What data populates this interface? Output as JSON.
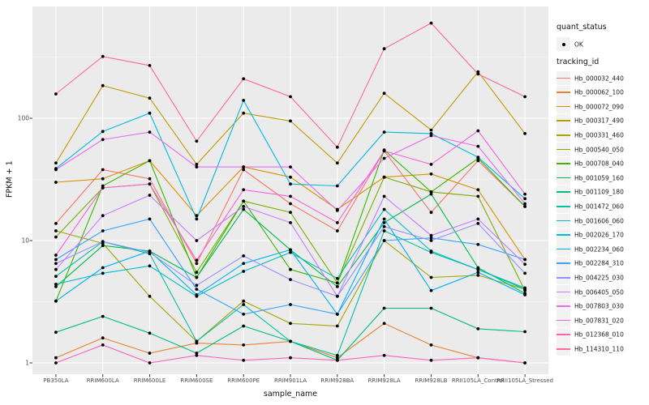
{
  "figure": {
    "y_axis": {
      "title": "FPKM + 1"
    },
    "x_axis": {
      "title": "sample_name"
    },
    "legend": {
      "quant_status_title": "quant_status",
      "quant_status_ok_label": "OK",
      "tracking_id_title": "tracking_id"
    }
  },
  "colors": {
    "panel_background": "#EBEBEB",
    "grid_major": "#FFFFFF",
    "grid_minor": "#F5F5F5",
    "tick_mark": "#333333",
    "axis_text": "#4D4D4D",
    "point": "#000000",
    "legend_key_background": "#F2F2F2"
  },
  "chart_data": {
    "type": "line",
    "title": "",
    "xlabel": "sample_name",
    "ylabel": "FPKM + 1",
    "y_scale": "log10",
    "y_ticks": [
      1,
      10,
      100
    ],
    "y_minor_ticks": [
      3.1623,
      31.623,
      316.23
    ],
    "ylim": [
      0.81,
      820
    ],
    "grid": true,
    "legend_position": "right",
    "point_shape": "filled-circle",
    "quant_status": "OK",
    "x": [
      "PB350LA",
      "RRIM600LA",
      "RRIM600LE",
      "RRIM600SE",
      "RRIM600PE",
      "RRIM901LA",
      "RRIM928BA",
      "RRIM928LA",
      "RRIM928LB",
      "RRII105LA_Control",
      "RRII105LA_Stressed"
    ],
    "series": [
      {
        "name": "Hb_000032_440",
        "color": "#F8766D",
        "values": [
          13.8,
          38,
          32,
          6.5,
          38,
          20,
          12,
          54,
          17,
          45,
          19
        ]
      },
      {
        "name": "Hb_000062_100",
        "color": "#EA8331",
        "values": [
          1.1,
          1.6,
          1.2,
          1.45,
          1.4,
          1.5,
          1.1,
          2.1,
          1.4,
          1.1,
          1.0
        ]
      },
      {
        "name": "Hb_000072_090",
        "color": "#D89000",
        "values": [
          30,
          32,
          45,
          16,
          40,
          33,
          18,
          33,
          35,
          26,
          7.0
        ]
      },
      {
        "name": "Hb_000317_490",
        "color": "#C09B00",
        "values": [
          43,
          185,
          146,
          42,
          110,
          95,
          43,
          160,
          80,
          240,
          75
        ]
      },
      {
        "name": "Hb_000331_460",
        "color": "#A3A500",
        "values": [
          12,
          9.5,
          3.5,
          1.5,
          3.2,
          2.1,
          2.0,
          10,
          5.0,
          5.2,
          4.0
        ]
      },
      {
        "name": "Hb_000540_050",
        "color": "#7CAE00",
        "values": [
          10.7,
          27,
          29,
          5.5,
          21,
          17,
          4.5,
          33,
          25,
          23,
          3.9
        ]
      },
      {
        "name": "Hb_000708_040",
        "color": "#39B600",
        "values": [
          3.2,
          28,
          45,
          5.0,
          21,
          5.8,
          4.5,
          55,
          25,
          47,
          19
        ]
      },
      {
        "name": "Hb_001059_160",
        "color": "#00BB4E",
        "values": [
          4.2,
          9.1,
          8.2,
          5.0,
          18,
          8.4,
          4.2,
          14,
          24,
          6.0,
          3.7
        ]
      },
      {
        "name": "Hb_001109_180",
        "color": "#00BF7D",
        "values": [
          1.78,
          2.4,
          1.75,
          1.2,
          2.0,
          1.5,
          1.05,
          2.8,
          2.8,
          1.9,
          1.8
        ]
      },
      {
        "name": "Hb_001472_060",
        "color": "#00C1A3",
        "values": [
          5.1,
          9.8,
          7.8,
          1.5,
          3.0,
          1.5,
          1.15,
          12,
          8.0,
          5.8,
          4.0
        ]
      },
      {
        "name": "Hb_001606_060",
        "color": "#00BFC4",
        "values": [
          4.4,
          5.4,
          6.2,
          3.5,
          5.6,
          8.0,
          4.9,
          18,
          8.2,
          5.8,
          4.1
        ]
      },
      {
        "name": "Hb_002026_170",
        "color": "#00BAE0",
        "values": [
          38.8,
          78,
          110,
          15,
          140,
          29,
          28,
          77,
          75,
          48,
          22
        ]
      },
      {
        "name": "Hb_002234_060",
        "color": "#00B0F6",
        "values": [
          3.2,
          6.0,
          8.2,
          3.6,
          6.5,
          8.4,
          2.5,
          15,
          3.9,
          5.5,
          3.6
        ]
      },
      {
        "name": "Hb_002284_310",
        "color": "#35A2FF",
        "values": [
          7.0,
          12,
          15,
          4.0,
          2.5,
          3.0,
          2.5,
          10,
          10.5,
          9.3,
          7.0
        ]
      },
      {
        "name": "Hb_004225_030",
        "color": "#9590FF",
        "values": [
          6.5,
          9.8,
          8.0,
          4.3,
          7.5,
          4.8,
          3.5,
          13,
          10,
          13.8,
          5.4
        ]
      },
      {
        "name": "Hb_006405_050",
        "color": "#C77CFF",
        "values": [
          5.8,
          16,
          23.5,
          10,
          19,
          14,
          3.5,
          23,
          11,
          15,
          6.4
        ]
      },
      {
        "name": "Hb_007803_030",
        "color": "#E76BF3",
        "values": [
          38,
          67,
          77,
          40,
          40,
          40,
          17.6,
          47,
          72,
          59,
          20
        ]
      },
      {
        "name": "Hb_007831_020",
        "color": "#FA62DB",
        "values": [
          7.6,
          27,
          29,
          6.9,
          26,
          23,
          14,
          54,
          42,
          79,
          24
        ]
      },
      {
        "name": "Hb_012368_010",
        "color": "#FF62BC",
        "values": [
          1.0,
          1.4,
          1.0,
          1.15,
          1.05,
          1.1,
          1.05,
          1.15,
          1.05,
          1.1,
          1.0
        ]
      },
      {
        "name": "Hb_114310_110",
        "color": "#FF6A98",
        "values": [
          158,
          320,
          270,
          65,
          210,
          150,
          58,
          370,
          600,
          230,
          150
        ]
      }
    ]
  }
}
